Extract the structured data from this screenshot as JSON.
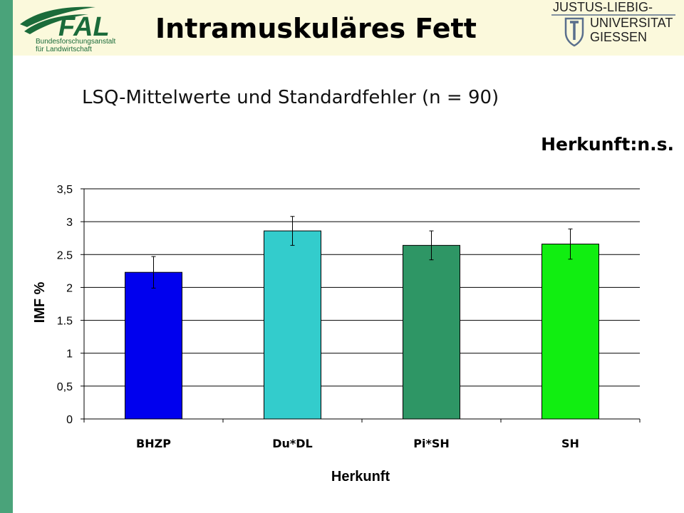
{
  "slide": {
    "title": "Intramuskuläres Fett",
    "subtitle": "LSQ-Mittelwerte und Standardfehler (n = 90)",
    "significance": "Herkunft:n.s."
  },
  "logos": {
    "fal_wordmark": "FAL",
    "fal_line1": "Bundesforschungsanstalt",
    "fal_line2": "für Landwirtschaft",
    "jlu_line1": "JUSTUS-LIEBIG-",
    "jlu_line2": "UNIVERSITAT",
    "jlu_line3": "GIESSEN"
  },
  "colors": {
    "left_stripe": "#4aa37a",
    "header_band": "#fbf9dc",
    "fal_green": "#1b6b3a",
    "jlu_blue": "#5a6f8c"
  },
  "chart_data": {
    "type": "bar",
    "categories": [
      "BHZP",
      "Du*DL",
      "Pi*SH",
      "SH"
    ],
    "values": [
      2.23,
      2.86,
      2.64,
      2.66
    ],
    "errors": [
      0.24,
      0.22,
      0.22,
      0.23
    ],
    "colors": [
      "#0000ee",
      "#33cccc",
      "#2e9665",
      "#11ee11"
    ],
    "xlabel": "Herkunft",
    "ylabel": "IMF %",
    "ylim": [
      0,
      3.5
    ],
    "yticks": [
      0,
      0.5,
      1,
      1.5,
      2,
      2.5,
      3,
      3.5
    ],
    "ytick_labels": [
      "0",
      "0,5",
      "1",
      "1.5",
      "2",
      "2.5",
      "3",
      "3,5"
    ],
    "grid": true
  }
}
